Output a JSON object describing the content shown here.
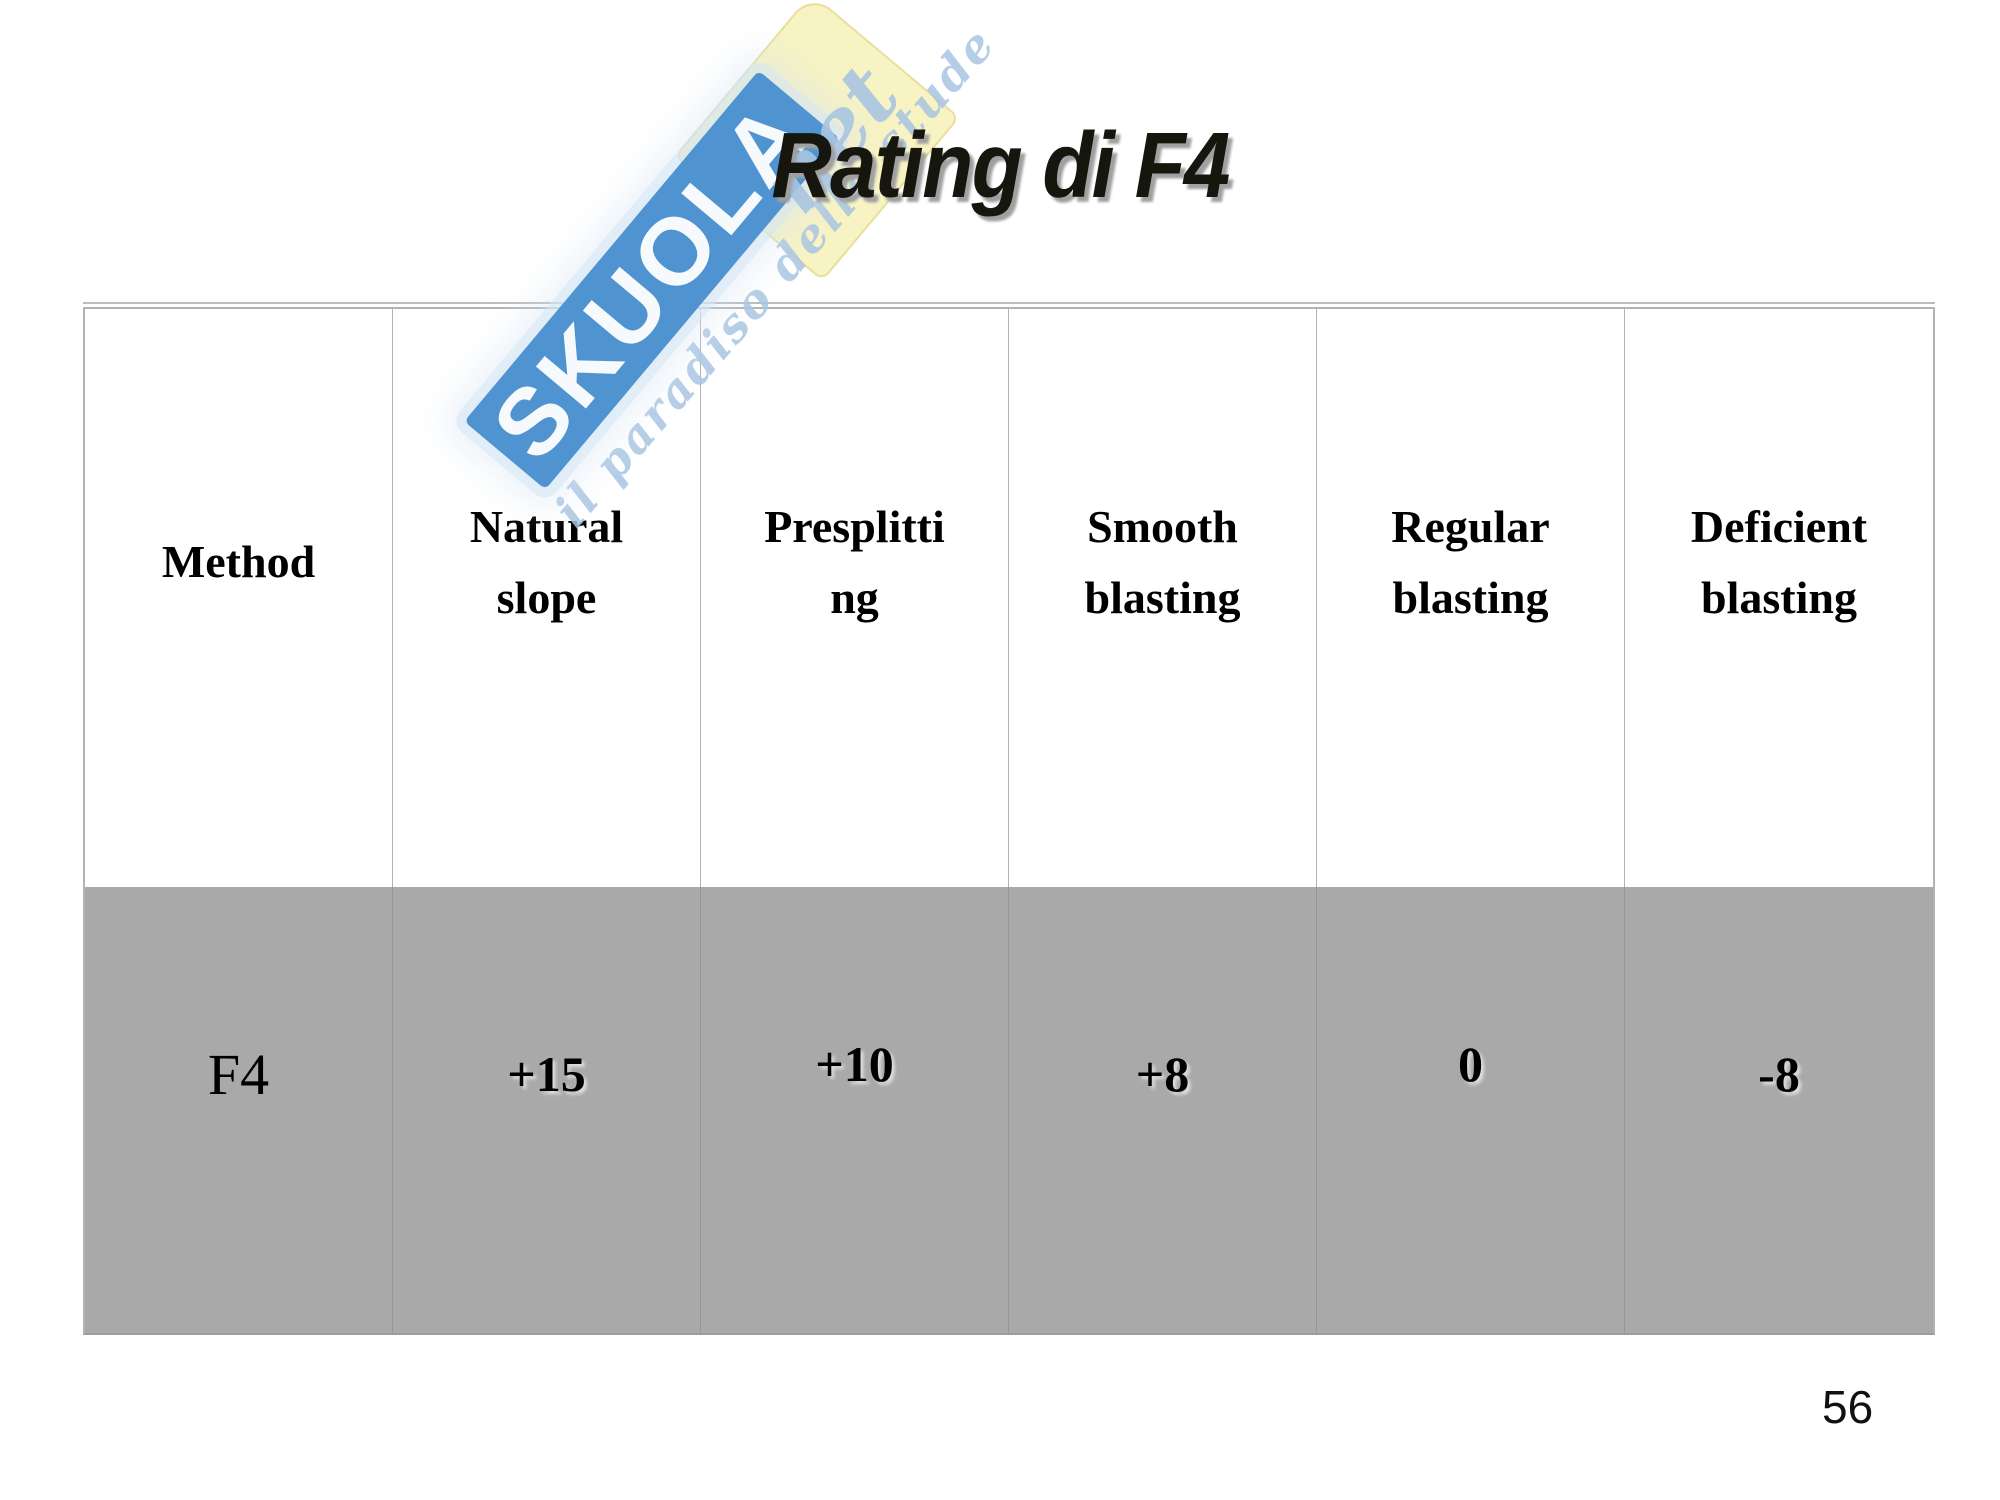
{
  "slide": {
    "title": "Rating di F4",
    "page_number": "56"
  },
  "watermark": {
    "brand": "SKUOLA",
    "suffix": "net",
    "slogan": "il paradiso dello stude",
    "colors": {
      "band_blue": "#4f93d1",
      "paper_yellow": "#f7f3c3",
      "script_blue": "#a9c5e2"
    }
  },
  "table": {
    "row_background": "#a9a9a9",
    "header": {
      "col1": "Method",
      "col2": "Natural\nslope",
      "col3": "Presplitti\nng",
      "col4": "Smooth\nblasting",
      "col5": "Regular\nblasting",
      "col6": "Deficient\nblasting"
    },
    "row": {
      "method": "F4",
      "natural_slope": "+15",
      "presplitting": "+10",
      "smooth_blasting": "+8",
      "regular_blasting": "0",
      "deficient_blasting": "-8"
    }
  }
}
